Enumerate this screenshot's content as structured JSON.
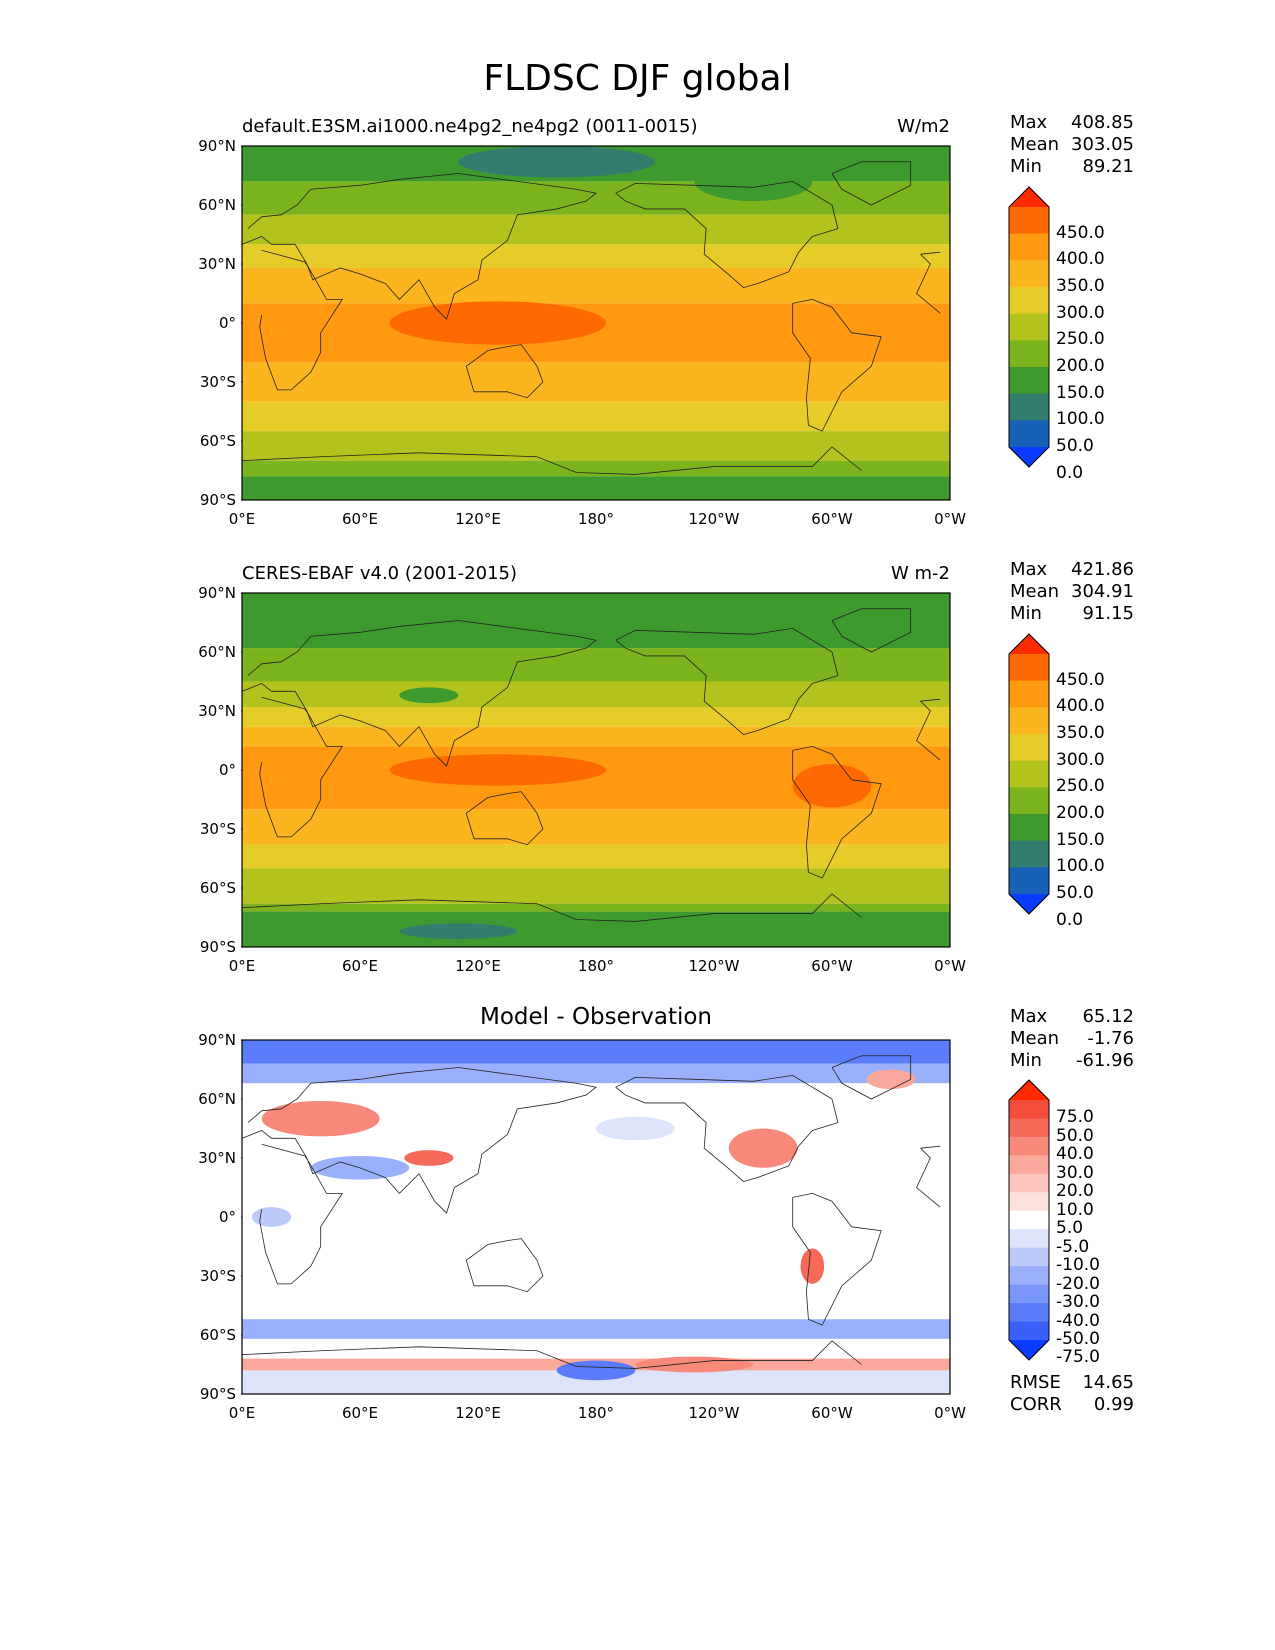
{
  "title": "FLDSC DJF global",
  "lat_ticks": [
    "90°N",
    "60°N",
    "30°N",
    "0°",
    "30°S",
    "60°S",
    "90°S"
  ],
  "lon_ticks": [
    "0°E",
    "60°E",
    "120°E",
    "180°",
    "120°W",
    "60°W",
    "0°W"
  ],
  "panels": [
    {
      "id": "test",
      "left_title": "default.E3SM.ai1000.ne4pg2_ne4pg2 (0011-0015)",
      "right_title": "W/m2",
      "center_title": "",
      "stats": [
        [
          "Max",
          "408.85"
        ],
        [
          "Mean",
          "303.05"
        ],
        [
          "Min",
          "89.21"
        ]
      ],
      "extra_stats": [],
      "colorbar": {
        "labels": [
          "450.0",
          "400.0",
          "350.0",
          "300.0",
          "250.0",
          "200.0",
          "150.0",
          "100.0",
          "50.0",
          "0.0"
        ],
        "colors": [
          "#ff2a00",
          "#ff6a00",
          "#ff9a10",
          "#fbb51e",
          "#e6cc28",
          "#b4c21e",
          "#7cb41e",
          "#3e9a2e",
          "#327d6e",
          "#1660b8",
          "#0a3cff"
        ]
      },
      "bands_from_north": [
        {
          "lat": 90,
          "color": "#3e9a2e"
        },
        {
          "lat": 72,
          "color": "#7cb41e"
        },
        {
          "lat": 55,
          "color": "#b4c21e"
        },
        {
          "lat": 40,
          "color": "#e6cc28"
        },
        {
          "lat": 28,
          "color": "#fbb51e"
        },
        {
          "lat": 10,
          "color": "#ff9a10"
        },
        {
          "lat": -20,
          "color": "#fbb51e"
        },
        {
          "lat": -40,
          "color": "#e6cc28"
        },
        {
          "lat": -55,
          "color": "#b4c21e"
        },
        {
          "lat": -70,
          "color": "#7cb41e"
        },
        {
          "lat": -78,
          "color": "#3e9a2e"
        }
      ],
      "patches": [
        {
          "lon": 130,
          "lat": 0,
          "w": 110,
          "h": 22,
          "color": "#ff6a00"
        },
        {
          "lon": 160,
          "lat": 82,
          "w": 100,
          "h": 16,
          "color": "#327d6e"
        },
        {
          "lon": 260,
          "lat": 72,
          "w": 60,
          "h": 20,
          "color": "#3e9a2e"
        }
      ]
    },
    {
      "id": "ref",
      "left_title": "CERES-EBAF v4.0 (2001-2015)",
      "right_title": "W m-2",
      "center_title": "",
      "stats": [
        [
          "Max",
          "421.86"
        ],
        [
          "Mean",
          "304.91"
        ],
        [
          "Min",
          "91.15"
        ]
      ],
      "extra_stats": [],
      "colorbar": {
        "labels": [
          "450.0",
          "400.0",
          "350.0",
          "300.0",
          "250.0",
          "200.0",
          "150.0",
          "100.0",
          "50.0",
          "0.0"
        ],
        "colors": [
          "#ff2a00",
          "#ff6a00",
          "#ff9a10",
          "#fbb51e",
          "#e6cc28",
          "#b4c21e",
          "#7cb41e",
          "#3e9a2e",
          "#327d6e",
          "#1660b8",
          "#0a3cff"
        ]
      },
      "bands_from_north": [
        {
          "lat": 90,
          "color": "#3e9a2e"
        },
        {
          "lat": 62,
          "color": "#7cb41e"
        },
        {
          "lat": 45,
          "color": "#b4c21e"
        },
        {
          "lat": 32,
          "color": "#e6cc28"
        },
        {
          "lat": 22,
          "color": "#fbb51e"
        },
        {
          "lat": 12,
          "color": "#ff9a10"
        },
        {
          "lat": -20,
          "color": "#fbb51e"
        },
        {
          "lat": -38,
          "color": "#e6cc28"
        },
        {
          "lat": -50,
          "color": "#b4c21e"
        },
        {
          "lat": -68,
          "color": "#7cb41e"
        },
        {
          "lat": -72,
          "color": "#3e9a2e"
        }
      ],
      "patches": [
        {
          "lon": 130,
          "lat": 0,
          "w": 110,
          "h": 16,
          "color": "#ff6a00"
        },
        {
          "lon": 300,
          "lat": -8,
          "w": 40,
          "h": 22,
          "color": "#ff6a00"
        },
        {
          "lon": 110,
          "lat": -82,
          "w": 60,
          "h": 8,
          "color": "#327d6e"
        },
        {
          "lon": 95,
          "lat": 38,
          "w": 30,
          "h": 8,
          "color": "#3e9a2e"
        }
      ]
    },
    {
      "id": "diff",
      "left_title": "",
      "right_title": "",
      "center_title": "Model - Observation",
      "stats": [
        [
          "Max",
          "65.12"
        ],
        [
          "Mean",
          "-1.76"
        ],
        [
          "Min",
          "-61.96"
        ]
      ],
      "extra_stats": [
        [
          "RMSE",
          "14.65"
        ],
        [
          "CORR",
          "0.99"
        ]
      ],
      "colorbar": {
        "labels": [
          "75.0",
          "50.0",
          "40.0",
          "30.0",
          "20.0",
          "10.0",
          "5.0",
          "-5.0",
          "-10.0",
          "-20.0",
          "-30.0",
          "-40.0",
          "-50.0",
          "-75.0"
        ],
        "colors": [
          "#ff2a00",
          "#f44d3b",
          "#f66a5a",
          "#f8887a",
          "#faa89c",
          "#fcc6bc",
          "#fde2dc",
          "#ffffff",
          "#dde3fa",
          "#bccafa",
          "#9bb0fa",
          "#7a96fa",
          "#5a7cfb",
          "#3a5ffb",
          "#0a3cff"
        ]
      },
      "bands_from_north": [
        {
          "lat": 90,
          "color": "#5a7cfb"
        },
        {
          "lat": 78,
          "color": "#9bb0fa"
        },
        {
          "lat": 68,
          "color": "#ffffff"
        },
        {
          "lat": -52,
          "color": "#9bb0fa"
        },
        {
          "lat": -62,
          "color": "#ffffff"
        },
        {
          "lat": -72,
          "color": "#faa89c"
        },
        {
          "lat": -78,
          "color": "#dde3fa"
        }
      ],
      "patches": [
        {
          "lon": 40,
          "lat": 50,
          "w": 60,
          "h": 18,
          "color": "#f8887a"
        },
        {
          "lon": 95,
          "lat": 30,
          "w": 25,
          "h": 8,
          "color": "#f66a5a"
        },
        {
          "lon": 265,
          "lat": 35,
          "w": 35,
          "h": 20,
          "color": "#f8887a"
        },
        {
          "lon": 330,
          "lat": 70,
          "w": 25,
          "h": 10,
          "color": "#faa89c"
        },
        {
          "lon": 290,
          "lat": -25,
          "w": 12,
          "h": 18,
          "color": "#f66a5a"
        },
        {
          "lon": 60,
          "lat": 25,
          "w": 50,
          "h": 12,
          "color": "#9bb0fa"
        },
        {
          "lon": 180,
          "lat": -78,
          "w": 40,
          "h": 10,
          "color": "#5a7cfb"
        },
        {
          "lon": 15,
          "lat": 0,
          "w": 20,
          "h": 10,
          "color": "#bccafa"
        },
        {
          "lon": 200,
          "lat": 45,
          "w": 40,
          "h": 12,
          "color": "#dde3fa"
        },
        {
          "lon": 230,
          "lat": -75,
          "w": 60,
          "h": 8,
          "color": "#f8887a"
        }
      ]
    }
  ]
}
